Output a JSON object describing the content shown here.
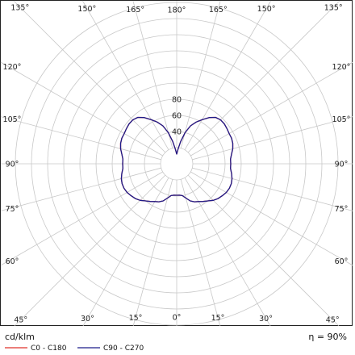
{
  "chart_data": {
    "type": "polar",
    "unit_label": "cd/klm",
    "efficiency_label": "η = 90%",
    "radial_ticks": [
      20,
      40,
      60,
      80
    ],
    "rlim": [
      0,
      100
    ],
    "ring_labels": [
      "40",
      "60",
      "80"
    ],
    "angle_ticks": [
      {
        "label": "0°",
        "angle": 0
      },
      {
        "label": "15°",
        "angle": 15
      },
      {
        "label": "30°",
        "angle": 30
      },
      {
        "label": "45°",
        "angle": 45
      },
      {
        "label": "60°",
        "angle": 60
      },
      {
        "label": "75°",
        "angle": 75
      },
      {
        "label": "90°",
        "angle": 90
      },
      {
        "label": "105°",
        "angle": 105
      },
      {
        "label": "120°",
        "angle": 120
      },
      {
        "label": "135°",
        "angle": 135
      },
      {
        "label": "150°",
        "angle": 150
      },
      {
        "label": "165°",
        "angle": 165
      },
      {
        "label": "180°",
        "angle": 180
      }
    ],
    "series": [
      {
        "name": "C0 - C180",
        "color": "#e0302a",
        "angles": [
          0,
          5,
          10,
          15,
          20,
          25,
          30,
          35,
          40,
          45,
          50,
          55,
          60,
          65,
          70,
          75,
          80,
          85,
          90,
          95,
          100,
          105,
          110,
          115,
          120,
          125,
          130,
          135,
          140,
          145,
          150,
          155,
          160,
          165,
          170,
          175,
          180
        ],
        "values": [
          39,
          39,
          40,
          44,
          49,
          52,
          54,
          57,
          60,
          64,
          67,
          69,
          71,
          72,
          72,
          71,
          69,
          67,
          67,
          67,
          69,
          72,
          74,
          75,
          75,
          76,
          77,
          77,
          75,
          70,
          63,
          57,
          50,
          40,
          28,
          18,
          12
        ]
      },
      {
        "name": "C90 - C270",
        "color": "#1c1c8a",
        "angles": [
          0,
          5,
          10,
          15,
          20,
          25,
          30,
          35,
          40,
          45,
          50,
          55,
          60,
          65,
          70,
          75,
          80,
          85,
          90,
          95,
          100,
          105,
          110,
          115,
          120,
          125,
          130,
          135,
          140,
          145,
          150,
          155,
          160,
          165,
          170,
          175,
          180
        ],
        "values": [
          39,
          39,
          40,
          44,
          49,
          52,
          54,
          57,
          60,
          64,
          67,
          69,
          71,
          72,
          72,
          71,
          69,
          67,
          67,
          67,
          69,
          72,
          74,
          75,
          75,
          76,
          77,
          77,
          75,
          70,
          63,
          57,
          50,
          40,
          28,
          18,
          12
        ]
      }
    ]
  }
}
